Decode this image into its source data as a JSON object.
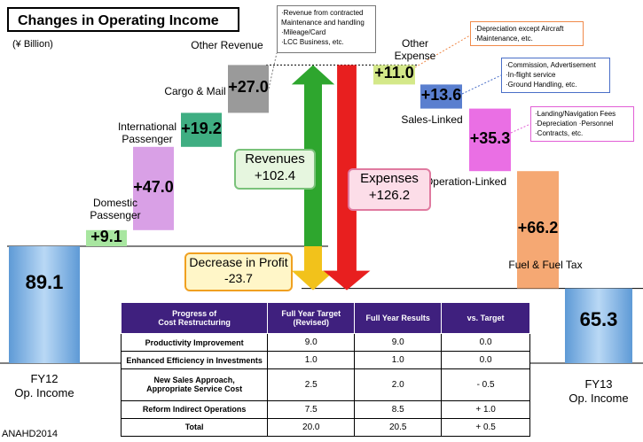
{
  "title": "Changes in Operating Income",
  "unit": "(¥ Billion)",
  "footer": "ANAHD2014",
  "colors": {
    "fy12": "#7fb2e6",
    "domestic": "#a8e6a0",
    "international": "#d9a0e6",
    "cargo": "#3fae82",
    "other": "#9a9a9a",
    "other_exp": "#d4e889",
    "sales": "#5a7fcf",
    "operation": "#ea6fe4",
    "fuel": "#f5a873",
    "fy13": "#7fb2e6",
    "rev_arrow": "#2ea62e",
    "exp_arrow": "#e81f1f",
    "decrease_arrow": "#f2c21b"
  },
  "chart_data": {
    "type": "waterfall",
    "title": "Changes in Operating Income",
    "unit": "(¥ Billion)",
    "start": {
      "label_lines": [
        "FY12",
        "Op. Income"
      ],
      "value": 89.1,
      "value_label": "89.1"
    },
    "end": {
      "label_lines": [
        "FY13",
        "Op. Income"
      ],
      "value": 65.3,
      "value_label": "65.3"
    },
    "revenue_steps": [
      {
        "label_lines": [
          "Domestic",
          "Passenger"
        ],
        "value": 9.1,
        "value_label": "+9.1"
      },
      {
        "label_lines": [
          "International",
          "Passenger"
        ],
        "value": 47.0,
        "value_label": "+47.0"
      },
      {
        "label_lines": [
          "Cargo & Mail"
        ],
        "value": 19.2,
        "value_label": "+19.2"
      },
      {
        "label_lines": [
          "Other Revenue"
        ],
        "value": 27.0,
        "value_label": "+27.0"
      }
    ],
    "expense_steps": [
      {
        "label_lines": [
          "Other",
          "Expense"
        ],
        "value": 11.0,
        "value_label": "+11.0"
      },
      {
        "label_lines": [
          "Sales-Linked"
        ],
        "value": 13.6,
        "value_label": "+13.6"
      },
      {
        "label_lines": [
          "Operation-Linked"
        ],
        "value": 35.3,
        "value_label": "+35.3"
      },
      {
        "label_lines": [
          "Fuel & Fuel Tax"
        ],
        "value": 66.2,
        "value_label": "+66.2"
      }
    ],
    "totals": {
      "revenues": {
        "label": "Revenues",
        "value_label": "+102.4"
      },
      "expenses": {
        "label": "Expenses",
        "value_label": "+126.2"
      },
      "decrease": {
        "label": "Decrease in Profit",
        "value_label": "-23.7"
      }
    },
    "notes": {
      "other_revenue": [
        "·Revenue from contracted",
        "  Maintenance and handling",
        "·Mileage/Card",
        "·LCC Business, etc."
      ],
      "other_expense": [
        "·Depreciation except Aircraft",
        "·Maintenance, etc."
      ],
      "sales_linked": [
        "·Commission, Advertisement",
        "·In-flight service",
        "·Ground Handling, etc."
      ],
      "operation_linked": [
        "·Landing/Navigation Fees",
        "·Depreciation ·Personnel",
        "·Contracts, etc."
      ]
    }
  },
  "cost_table": {
    "headers": [
      "Progress of Cost Restructuring",
      "Full Year Target (Revised)",
      "Full Year Results",
      "vs. Target"
    ],
    "header_lines": [
      [
        "Progress of",
        "Cost Restructuring"
      ],
      [
        "Full Year Target",
        "(Revised)"
      ],
      [
        "Full Year Results"
      ],
      [
        "vs. Target"
      ]
    ],
    "rows": [
      {
        "item_lines": [
          "Productivity Improvement"
        ],
        "target": "9.0",
        "results": "9.0",
        "vs": "0.0"
      },
      {
        "item_lines": [
          "Enhanced Efficiency in Investments"
        ],
        "target": "1.0",
        "results": "1.0",
        "vs": "0.0"
      },
      {
        "item_lines": [
          "New Sales Approach,",
          "Appropriate  Service Cost"
        ],
        "target": "2.5",
        "results": "2.0",
        "vs": "- 0.5"
      },
      {
        "item_lines": [
          "Reform Indirect Operations"
        ],
        "target": "7.5",
        "results": "8.5",
        "vs": "+ 1.0"
      },
      {
        "item_lines": [
          "Total"
        ],
        "target": "20.0",
        "results": "20.5",
        "vs": "+ 0.5"
      }
    ]
  }
}
